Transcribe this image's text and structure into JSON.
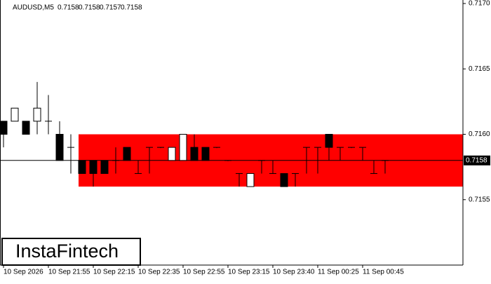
{
  "chart_data": {
    "type": "candlestick",
    "title": "AUDUSD,M5",
    "header_values": [
      0.7158,
      0.7158,
      0.7157,
      0.7158
    ],
    "categories": [
      "10 Sep 2026",
      null,
      null,
      null,
      "10 Sep 21:55",
      null,
      null,
      null,
      "10 Sep 22:15",
      null,
      null,
      null,
      "10 Sep 22:35",
      null,
      null,
      null,
      "10 Sep 22:55",
      null,
      null,
      null,
      "10 Sep 23:15",
      null,
      null,
      null,
      "10 Sep 23:40",
      null,
      null,
      null,
      "11 Sep 00:25",
      null,
      null,
      null,
      "11 Sep 00:45",
      null,
      null
    ],
    "open": [
      0.7161,
      0.7161,
      0.7161,
      0.7161,
      0.7161,
      0.716,
      0.7159,
      0.7158,
      0.7158,
      0.7158,
      0.7158,
      0.7159,
      0.7157,
      0.7159,
      0.7159,
      0.7158,
      0.7158,
      0.7159,
      0.7159,
      0.7159,
      0.7158,
      0.7157,
      0.7156,
      0.7158,
      0.7157,
      0.7157,
      0.7157,
      0.7159,
      0.7159,
      0.716,
      0.7159,
      0.7159,
      0.7159,
      0.7157,
      0.7158
    ],
    "high": [
      0.7161,
      0.7162,
      0.7161,
      0.7164,
      0.7163,
      0.7161,
      0.716,
      0.7158,
      0.7158,
      0.7158,
      0.7159,
      0.7159,
      0.7158,
      0.7159,
      0.7159,
      0.7159,
      0.716,
      0.716,
      0.7159,
      0.7159,
      0.7158,
      0.7157,
      0.7157,
      0.7158,
      0.7158,
      0.7157,
      0.7157,
      0.7159,
      0.7159,
      0.716,
      0.7159,
      0.7159,
      0.7159,
      0.7158,
      0.7158
    ],
    "low": [
      0.7159,
      0.7161,
      0.716,
      0.716,
      0.716,
      0.7158,
      0.7157,
      0.7157,
      0.7156,
      0.7157,
      0.7157,
      0.7158,
      0.7157,
      0.7157,
      0.7159,
      0.7158,
      0.7158,
      0.7158,
      0.7158,
      0.7159,
      0.7158,
      0.7156,
      0.7156,
      0.7157,
      0.7157,
      0.7156,
      0.7156,
      0.7157,
      0.7157,
      0.7158,
      0.7158,
      0.7159,
      0.7158,
      0.7157,
      0.7157
    ],
    "close": [
      0.716,
      0.7162,
      0.716,
      0.7162,
      0.7161,
      0.7158,
      0.7159,
      0.7157,
      0.7157,
      0.7157,
      0.7158,
      0.7158,
      0.7157,
      0.7159,
      0.7159,
      0.7159,
      0.716,
      0.7158,
      0.7158,
      0.7159,
      0.7158,
      0.7157,
      0.7157,
      0.7158,
      0.7157,
      0.7156,
      0.7157,
      0.7159,
      0.7159,
      0.7159,
      0.7159,
      0.7159,
      0.7159,
      0.7157,
      0.7158
    ],
    "up_color": "#ffffff",
    "down_color": "#000000",
    "zone": {
      "low": 0.7156,
      "high": 0.716,
      "start_index": 7,
      "color": "#ff0000"
    },
    "current_price": 0.7158,
    "ylim": [
      0.715,
      0.717
    ],
    "yticks": [
      {
        "value": 0.717,
        "label": "0.7170"
      },
      0.7165,
      {
        "value": 0.716,
        "label": "0.7160"
      },
      0.7155
    ],
    "logo": "InstaFintech"
  }
}
